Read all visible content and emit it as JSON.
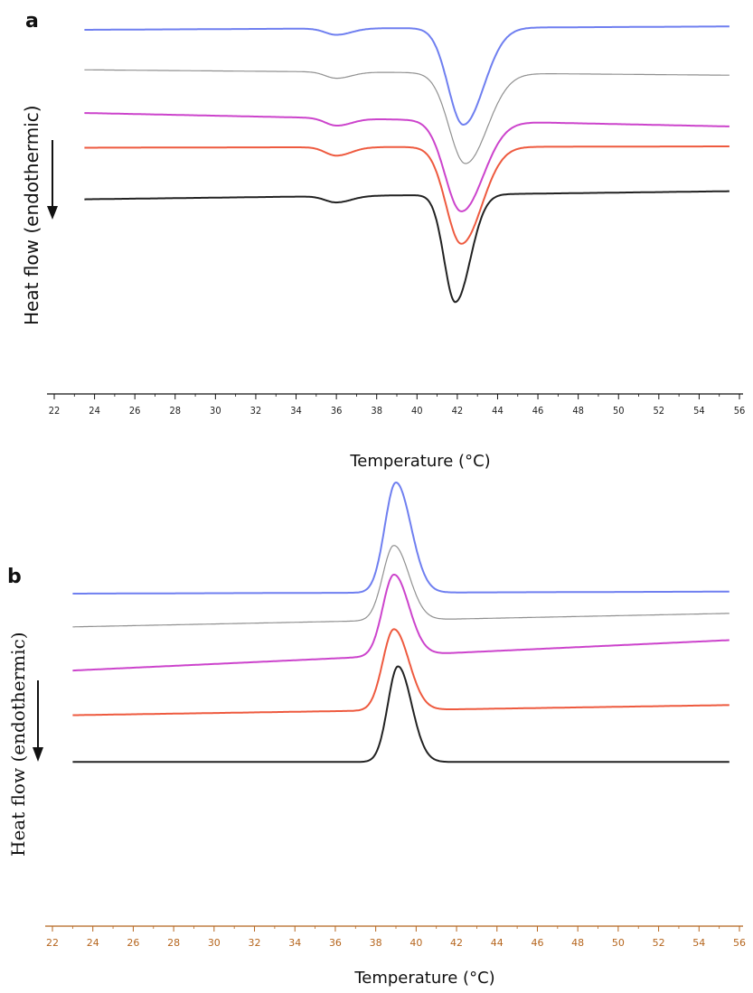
{
  "chart_data": [
    {
      "panel": "a",
      "type": "line",
      "ylabel": "Heat flow (endothermic)",
      "xlabel": "Temperature (°C)",
      "x_ticks": [
        "22",
        "24",
        "26",
        "28",
        "30",
        "32",
        "34",
        "36",
        "38",
        "40",
        "42",
        "44",
        "46",
        "48",
        "50",
        "52",
        "54",
        "56"
      ],
      "xlim": [
        22,
        56
      ],
      "y_axis_arrow": "down",
      "series": [
        {
          "color": "#6f7ff0",
          "baseline_level": 0.0,
          "start_x": 23.5,
          "end_x": 55.5,
          "slope": -0.005,
          "features": [
            {
              "x": 36.0,
              "depth": 0.3,
              "width": 0.55
            },
            {
              "x": 42.3,
              "depth": 4.6,
              "width": 0.75
            }
          ]
        },
        {
          "color": "#909090",
          "baseline_level": 1.9,
          "start_x": 23.5,
          "end_x": 55.5,
          "slope": 0.008,
          "features": [
            {
              "x": 36.0,
              "depth": 0.3,
              "width": 0.55
            },
            {
              "x": 42.4,
              "depth": 4.3,
              "width": 0.8
            }
          ]
        },
        {
          "color": "#cc44cc",
          "baseline_level": 3.95,
          "start_x": 23.5,
          "end_x": 55.5,
          "slope": 0.02,
          "features": [
            {
              "x": 36.0,
              "depth": 0.35,
              "width": 0.55
            },
            {
              "x": 42.2,
              "depth": 4.3,
              "width": 0.8
            }
          ]
        },
        {
          "color": "#ee5a3f",
          "baseline_level": 5.6,
          "start_x": 23.5,
          "end_x": 55.5,
          "slope": -0.002,
          "features": [
            {
              "x": 36.0,
              "depth": 0.4,
              "width": 0.55
            },
            {
              "x": 42.2,
              "depth": 4.6,
              "width": 0.75
            }
          ]
        },
        {
          "color": "#222222",
          "baseline_level": 8.05,
          "start_x": 23.5,
          "end_x": 55.5,
          "slope": -0.012,
          "features": [
            {
              "x": 36.0,
              "depth": 0.3,
              "width": 0.55
            },
            {
              "x": 41.9,
              "depth": 5.1,
              "width": 0.55
            }
          ]
        }
      ]
    },
    {
      "panel": "b",
      "type": "line",
      "ylabel": "Heat flow (endothermic)",
      "xlabel": "Temperature (°C)",
      "x_ticks": [
        "22",
        "24",
        "26",
        "28",
        "30",
        "32",
        "34",
        "36",
        "38",
        "40",
        "42",
        "44",
        "46",
        "48",
        "50",
        "52",
        "54",
        "56"
      ],
      "xlim": [
        22,
        56
      ],
      "y_axis_arrow": "down",
      "series": [
        {
          "color": "#6f7ff0",
          "baseline_level": 0.0,
          "start_x": 23.0,
          "end_x": 55.5,
          "slope": -0.003,
          "features": [
            {
              "x": 39.0,
              "height": 5.3,
              "width": 0.55
            }
          ]
        },
        {
          "color": "#909090",
          "baseline_level": 1.6,
          "start_x": 23.0,
          "end_x": 55.5,
          "slope": -0.02,
          "features": [
            {
              "x": 38.9,
              "height": 3.6,
              "width": 0.55
            }
          ]
        },
        {
          "color": "#cc44cc",
          "baseline_level": 3.7,
          "start_x": 23.0,
          "end_x": 55.5,
          "slope": -0.045,
          "features": [
            {
              "x": 38.9,
              "height": 3.9,
              "width": 0.55
            }
          ]
        },
        {
          "color": "#ee5a3f",
          "baseline_level": 5.85,
          "start_x": 23.0,
          "end_x": 55.5,
          "slope": -0.015,
          "features": [
            {
              "x": 38.9,
              "height": 3.9,
              "width": 0.55
            }
          ]
        },
        {
          "color": "#222222",
          "baseline_level": 8.1,
          "start_x": 23.0,
          "end_x": 55.5,
          "slope": 0.0,
          "features": [
            {
              "x": 39.1,
              "height": 4.6,
              "width": 0.5
            }
          ]
        }
      ]
    }
  ]
}
